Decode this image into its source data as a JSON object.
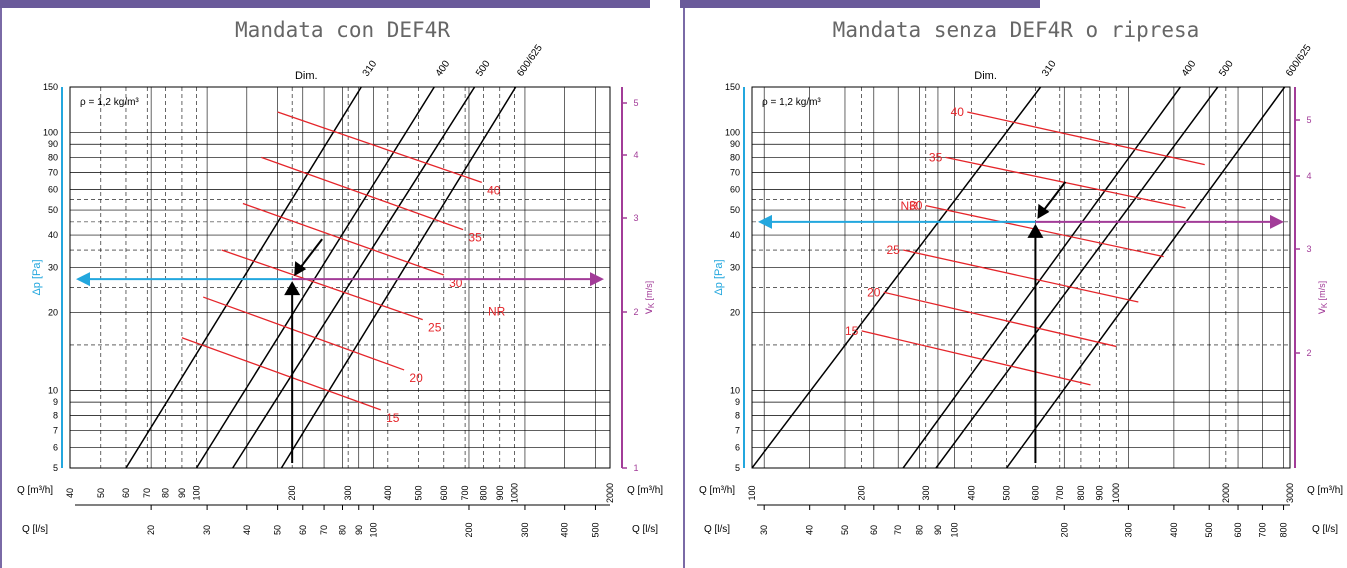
{
  "colors": {
    "frame": "#7a6aa6",
    "topbar": "#6a5a9a",
    "dp_axis": "#23a7de",
    "vk_axis": "#a23c98",
    "nr_lines": "#e5252a",
    "grid": "#000000"
  },
  "chart_data": [
    {
      "type": "line",
      "title": "Mandata con DEF4R",
      "ylabel": "Δp [Pa]",
      "y2label": "v",
      "y2label_sub": "K",
      "y2label_unit": "[m/s]",
      "xlabel_top": "Q [m³/h]",
      "xlabel_bottom": "Q [l/s]",
      "xlim_m3h": [
        40,
        2000
      ],
      "ylim": [
        5,
        150
      ],
      "y_scale": "log",
      "x_scale": "log",
      "y_ticks": [
        "5",
        "6",
        "7",
        "8",
        "9",
        "10",
        "20",
        "30",
        "40",
        "50",
        "60",
        "70",
        "80",
        "90",
        "100",
        "150"
      ],
      "x_ticks_m3h": [
        "40",
        "50",
        "60",
        "70",
        "80",
        "90",
        "100",
        "200",
        "300",
        "400",
        "500",
        "600",
        "700",
        "800",
        "900",
        "1000",
        "2000"
      ],
      "x_ticks_ls": [
        "20",
        "30",
        "40",
        "50",
        "60",
        "70",
        "80",
        "90",
        "100",
        "200",
        "300",
        "400",
        "500"
      ],
      "vk_ticks": [
        "1",
        "2",
        "3",
        "4",
        "5"
      ],
      "annotation_density": "ρ = 1,2 kg/m³",
      "dim_label": "Dim.",
      "dim_series": [
        {
          "name": "310",
          "points": [
            [
              60,
              5
            ],
            [
              330,
              150
            ]
          ]
        },
        {
          "name": "400",
          "points": [
            [
              100,
              5
            ],
            [
              560,
              150
            ]
          ]
        },
        {
          "name": "500",
          "points": [
            [
              130,
              5
            ],
            [
              750,
              150
            ]
          ]
        },
        {
          "name": "600/625",
          "points": [
            [
              185,
              5
            ],
            [
              1010,
              150
            ]
          ]
        }
      ],
      "nr_label": "NR",
      "nr_series": [
        {
          "name": "15",
          "points": [
            [
              90,
              16
            ],
            [
              380,
              8.4
            ]
          ]
        },
        {
          "name": "20",
          "points": [
            [
              105,
              23
            ],
            [
              450,
              12
            ]
          ]
        },
        {
          "name": "25",
          "points": [
            [
              120,
              35
            ],
            [
              515,
              18.8
            ]
          ]
        },
        {
          "name": "30",
          "points": [
            [
              140,
              53
            ],
            [
              600,
              28
            ]
          ]
        },
        {
          "name": "35",
          "points": [
            [
              160,
              80
            ],
            [
              690,
              42
            ]
          ]
        },
        {
          "name": "40",
          "points": [
            [
              180,
              120
            ],
            [
              790,
              64
            ]
          ]
        }
      ],
      "example": {
        "q_m3h": 200,
        "dp": 27
      }
    },
    {
      "type": "line",
      "title": "Mandata senza DEF4R o ripresa",
      "ylabel": "Δp [Pa]",
      "y2label": "v",
      "y2label_sub": "K",
      "y2label_unit": "[m/s]",
      "xlabel_top": "Q [m³/h]",
      "xlabel_bottom": "Q [l/s]",
      "xlim_m3h": [
        100,
        3000
      ],
      "ylim": [
        5,
        150
      ],
      "y_scale": "log",
      "x_scale": "log",
      "y_ticks": [
        "5",
        "6",
        "7",
        "8",
        "9",
        "10",
        "20",
        "30",
        "40",
        "50",
        "60",
        "70",
        "80",
        "90",
        "100",
        "150"
      ],
      "x_ticks_m3h": [
        "100",
        "200",
        "300",
        "400",
        "500",
        "600",
        "700",
        "800",
        "900",
        "1000",
        "2000",
        "3000"
      ],
      "x_ticks_ls": [
        "30",
        "40",
        "50",
        "60",
        "70",
        "80",
        "90",
        "100",
        "200",
        "300",
        "400",
        "500",
        "600",
        "700",
        "800"
      ],
      "vk_ticks": [
        "2",
        "3",
        "4",
        "5"
      ],
      "annotation_density": "ρ = 1,2 kg/m³",
      "dim_label": "Dim.",
      "dim_series": [
        {
          "name": "310",
          "points": [
            [
              100,
              5
            ],
            [
              620,
              150
            ]
          ]
        },
        {
          "name": "400",
          "points": [
            [
              260,
              5
            ],
            [
              1500,
              150
            ]
          ]
        },
        {
          "name": "500",
          "points": [
            [
              320,
              5
            ],
            [
              1900,
              150
            ]
          ]
        },
        {
          "name": "600/625",
          "points": [
            [
              500,
              5
            ],
            [
              2900,
              150
            ]
          ]
        }
      ],
      "nr_label": "NR",
      "nr_series": [
        {
          "name": "15",
          "points": [
            [
              200,
              17
            ],
            [
              850,
              10.5
            ]
          ]
        },
        {
          "name": "20",
          "points": [
            [
              230,
              24
            ],
            [
              1000,
              14.8
            ]
          ]
        },
        {
          "name": "25",
          "points": [
            [
              260,
              35
            ],
            [
              1150,
              22
            ]
          ]
        },
        {
          "name": "30",
          "points": [
            [
              300,
              52
            ],
            [
              1350,
              33
            ]
          ]
        },
        {
          "name": "35",
          "points": [
            [
              340,
              80
            ],
            [
              1550,
              51
            ]
          ]
        },
        {
          "name": "40",
          "points": [
            [
              390,
              120
            ],
            [
              1750,
              75
            ]
          ]
        }
      ],
      "example": {
        "q_m3h": 600,
        "dp": 45
      }
    }
  ]
}
